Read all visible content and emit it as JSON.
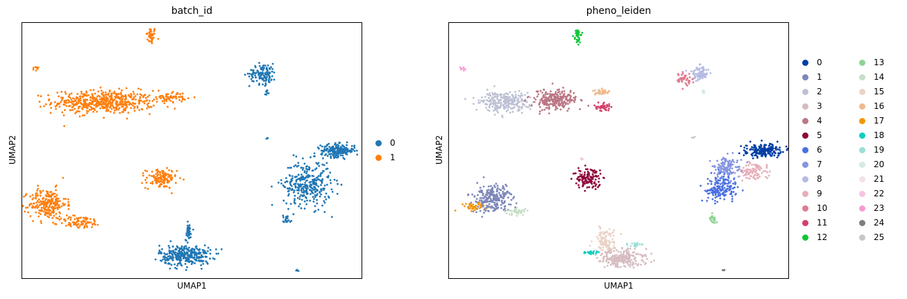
{
  "chart_data": [
    {
      "type": "scatter",
      "title": "batch_id",
      "xlabel": "UMAP1",
      "ylabel": "UMAP2",
      "grid": false,
      "ticks": "none",
      "legend_position": "right",
      "legend": [
        {
          "label": "0",
          "color": "#1f77b4"
        },
        {
          "label": "1",
          "color": "#ff7f0e"
        }
      ],
      "clusters": [
        {
          "group": "1",
          "x": 3.8,
          "y": 9.5,
          "spread_x": 0.15,
          "spread_y": 0.35,
          "n": 40
        },
        {
          "group": "1",
          "x": 0.4,
          "y": 8.2,
          "spread_x": 0.1,
          "spread_y": 0.08,
          "n": 8
        },
        {
          "group": "1",
          "x": 2.4,
          "y": 6.9,
          "spread_x": 1.5,
          "spread_y": 0.45,
          "n": 520
        },
        {
          "group": "1",
          "x": 4.4,
          "y": 7.1,
          "spread_x": 0.45,
          "spread_y": 0.2,
          "n": 60
        },
        {
          "group": "1",
          "x": 4.1,
          "y": 3.9,
          "spread_x": 0.45,
          "spread_y": 0.38,
          "n": 130
        },
        {
          "group": "1",
          "x": 0.75,
          "y": 2.9,
          "spread_x": 0.55,
          "spread_y": 0.6,
          "n": 240
        },
        {
          "group": "1",
          "x": 1.7,
          "y": 2.2,
          "spread_x": 0.65,
          "spread_y": 0.25,
          "n": 90
        },
        {
          "group": "0",
          "x": 7.1,
          "y": 8.0,
          "spread_x": 0.4,
          "spread_y": 0.4,
          "n": 120
        },
        {
          "group": "0",
          "x": 7.2,
          "y": 7.3,
          "spread_x": 0.1,
          "spread_y": 0.1,
          "n": 10
        },
        {
          "group": "0",
          "x": 9.3,
          "y": 5.0,
          "spread_x": 0.5,
          "spread_y": 0.25,
          "n": 200
        },
        {
          "group": "0",
          "x": 8.4,
          "y": 3.7,
          "spread_x": 0.7,
          "spread_y": 0.9,
          "n": 320
        },
        {
          "group": "0",
          "x": 7.8,
          "y": 2.3,
          "spread_x": 0.15,
          "spread_y": 0.2,
          "n": 20
        },
        {
          "group": "0",
          "x": 4.8,
          "y": 0.9,
          "spread_x": 0.75,
          "spread_y": 0.4,
          "n": 320
        },
        {
          "group": "0",
          "x": 4.9,
          "y": 1.8,
          "spread_x": 0.1,
          "spread_y": 0.35,
          "n": 40
        },
        {
          "group": "0",
          "x": 8.1,
          "y": 0.3,
          "spread_x": 0.1,
          "spread_y": 0.05,
          "n": 4
        },
        {
          "group": "0",
          "x": 7.2,
          "y": 5.5,
          "spread_x": 0.05,
          "spread_y": 0.05,
          "n": 3
        }
      ],
      "xlim": [
        0,
        10
      ],
      "ylim": [
        0,
        10
      ]
    },
    {
      "type": "scatter",
      "title": "pheno_leiden",
      "xlabel": "UMAP1",
      "ylabel": "UMAP2",
      "grid": false,
      "ticks": "none",
      "legend_position": "right",
      "legend_columns": 2,
      "legend": [
        {
          "label": "0",
          "color": "#023fa5"
        },
        {
          "label": "1",
          "color": "#7d87b9"
        },
        {
          "label": "2",
          "color": "#bec1d4"
        },
        {
          "label": "3",
          "color": "#d6bcc0"
        },
        {
          "label": "4",
          "color": "#bb7784"
        },
        {
          "label": "5",
          "color": "#8e063b"
        },
        {
          "label": "6",
          "color": "#4a6fe3"
        },
        {
          "label": "7",
          "color": "#8595e1"
        },
        {
          "label": "8",
          "color": "#b5bbe3"
        },
        {
          "label": "9",
          "color": "#e6afb9"
        },
        {
          "label": "10",
          "color": "#e07b91"
        },
        {
          "label": "11",
          "color": "#d33f6a"
        },
        {
          "label": "12",
          "color": "#11c638"
        },
        {
          "label": "13",
          "color": "#8dd593"
        },
        {
          "label": "14",
          "color": "#c6dec7"
        },
        {
          "label": "15",
          "color": "#ead3c6"
        },
        {
          "label": "16",
          "color": "#f0b98d"
        },
        {
          "label": "17",
          "color": "#ef9708"
        },
        {
          "label": "18",
          "color": "#0fcfc0"
        },
        {
          "label": "19",
          "color": "#9cded6"
        },
        {
          "label": "20",
          "color": "#d5eae7"
        },
        {
          "label": "21",
          "color": "#f3e1eb"
        },
        {
          "label": "22",
          "color": "#f6c4e1"
        },
        {
          "label": "23",
          "color": "#f79cd4"
        },
        {
          "label": "24",
          "color": "#7f7f7f"
        },
        {
          "label": "25",
          "color": "#c7c7c7"
        }
      ],
      "clusters": [
        {
          "group": "12",
          "x": 3.8,
          "y": 9.5,
          "spread_x": 0.12,
          "spread_y": 0.3,
          "n": 40
        },
        {
          "group": "23",
          "x": 0.4,
          "y": 8.2,
          "spread_x": 0.1,
          "spread_y": 0.08,
          "n": 8
        },
        {
          "group": "2",
          "x": 1.6,
          "y": 6.9,
          "spread_x": 0.7,
          "spread_y": 0.4,
          "n": 260
        },
        {
          "group": "4",
          "x": 3.1,
          "y": 7.0,
          "spread_x": 0.7,
          "spread_y": 0.4,
          "n": 240
        },
        {
          "group": "11",
          "x": 4.5,
          "y": 6.7,
          "spread_x": 0.25,
          "spread_y": 0.15,
          "n": 40
        },
        {
          "group": "16",
          "x": 4.5,
          "y": 7.3,
          "spread_x": 0.25,
          "spread_y": 0.12,
          "n": 40
        },
        {
          "group": "8",
          "x": 7.4,
          "y": 8.0,
          "spread_x": 0.3,
          "spread_y": 0.3,
          "n": 80
        },
        {
          "group": "10",
          "x": 6.9,
          "y": 7.8,
          "spread_x": 0.25,
          "spread_y": 0.25,
          "n": 50
        },
        {
          "group": "20",
          "x": 7.5,
          "y": 7.3,
          "spread_x": 0.08,
          "spread_y": 0.08,
          "n": 10
        },
        {
          "group": "0",
          "x": 9.3,
          "y": 5.0,
          "spread_x": 0.5,
          "spread_y": 0.25,
          "n": 200
        },
        {
          "group": "7",
          "x": 8.2,
          "y": 4.3,
          "spread_x": 0.4,
          "spread_y": 0.5,
          "n": 140
        },
        {
          "group": "6",
          "x": 8.0,
          "y": 3.5,
          "spread_x": 0.45,
          "spread_y": 0.45,
          "n": 160
        },
        {
          "group": "9",
          "x": 9.0,
          "y": 4.2,
          "spread_x": 0.45,
          "spread_y": 0.35,
          "n": 90
        },
        {
          "group": "13",
          "x": 7.8,
          "y": 2.3,
          "spread_x": 0.1,
          "spread_y": 0.2,
          "n": 20
        },
        {
          "group": "5",
          "x": 4.1,
          "y": 3.9,
          "spread_x": 0.45,
          "spread_y": 0.38,
          "n": 130
        },
        {
          "group": "22",
          "x": 3.9,
          "y": 4.7,
          "spread_x": 0.05,
          "spread_y": 0.08,
          "n": 4
        },
        {
          "group": "21",
          "x": 3.9,
          "y": 4.1,
          "spread_x": 0.05,
          "spread_y": 0.05,
          "n": 3
        },
        {
          "group": "1",
          "x": 1.3,
          "y": 3.1,
          "spread_x": 0.55,
          "spread_y": 0.55,
          "n": 240
        },
        {
          "group": "17",
          "x": 0.7,
          "y": 2.8,
          "spread_x": 0.35,
          "spread_y": 0.15,
          "n": 40
        },
        {
          "group": "14",
          "x": 2.0,
          "y": 2.6,
          "spread_x": 0.3,
          "spread_y": 0.15,
          "n": 40
        },
        {
          "group": "15",
          "x": 4.6,
          "y": 1.5,
          "spread_x": 0.3,
          "spread_y": 0.5,
          "n": 100
        },
        {
          "group": "3",
          "x": 5.1,
          "y": 0.8,
          "spread_x": 0.7,
          "spread_y": 0.35,
          "n": 220
        },
        {
          "group": "18",
          "x": 4.2,
          "y": 1.0,
          "spread_x": 0.3,
          "spread_y": 0.06,
          "n": 25
        },
        {
          "group": "19",
          "x": 5.5,
          "y": 1.3,
          "spread_x": 0.2,
          "spread_y": 0.08,
          "n": 20
        },
        {
          "group": "24",
          "x": 8.1,
          "y": 0.3,
          "spread_x": 0.08,
          "spread_y": 0.05,
          "n": 4
        },
        {
          "group": "25",
          "x": 7.2,
          "y": 5.5,
          "spread_x": 0.05,
          "spread_y": 0.05,
          "n": 3
        }
      ],
      "xlim": [
        0,
        10
      ],
      "ylim": [
        0,
        10
      ]
    }
  ]
}
